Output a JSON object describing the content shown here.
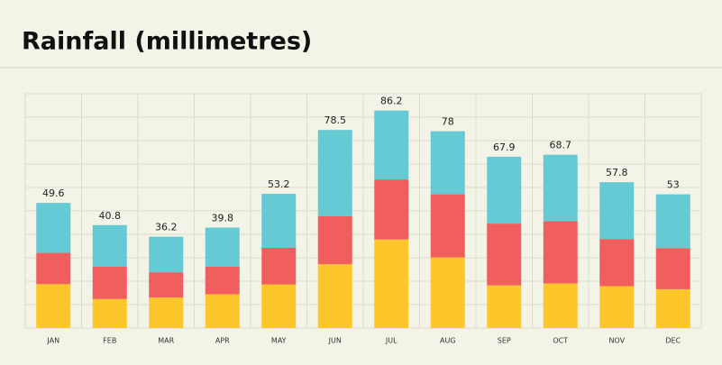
{
  "chart_data": {
    "type": "stacked-bar",
    "title": "Rainfall (millimetres)",
    "categories": [
      "JAN",
      "FEB",
      "MAR",
      "APR",
      "MAY",
      "JUN",
      "JUL",
      "AUG",
      "SEP",
      "OCT",
      "NOV",
      "DEC"
    ],
    "series": [
      {
        "color": "#fdc72b",
        "values": [
          17.4,
          11.5,
          12.1,
          13.4,
          17.3,
          25.3,
          35.1,
          28.0,
          16.9,
          17.7,
          16.6,
          15.4
        ]
      },
      {
        "color": "#f05e5d",
        "values": [
          12.4,
          12.8,
          10.0,
          10.9,
          14.5,
          19.0,
          23.8,
          25.0,
          24.5,
          24.6,
          18.7,
          16.3
        ]
      },
      {
        "color": "#66cad4",
        "values": [
          19.8,
          16.5,
          14.1,
          15.5,
          21.4,
          34.2,
          27.3,
          25.0,
          26.5,
          26.4,
          22.5,
          21.3
        ]
      }
    ],
    "totals": [
      49.6,
      40.8,
      36.2,
      39.8,
      53.2,
      78.5,
      86.2,
      78,
      67.9,
      68.7,
      57.8,
      53
    ]
  }
}
